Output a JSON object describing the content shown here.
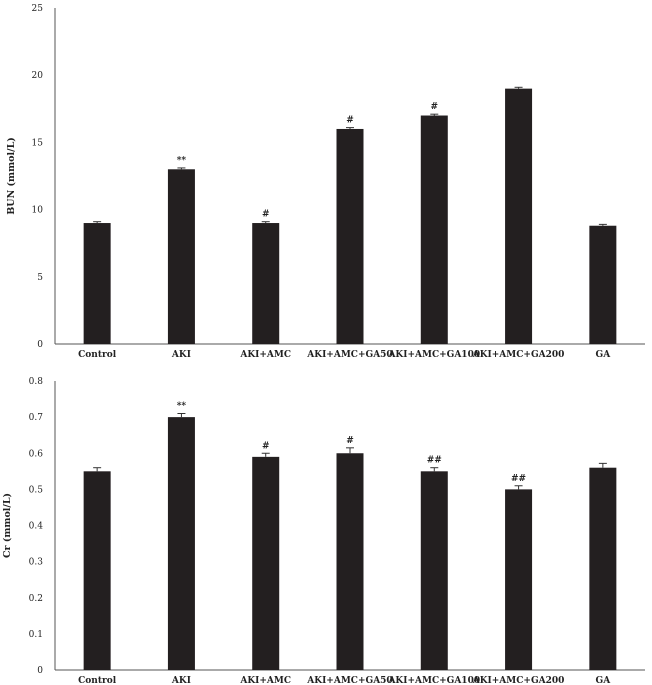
{
  "chart_data": [
    {
      "type": "bar",
      "ylabel": "BUN (mmol/L)",
      "xlabel": "",
      "title": "",
      "ylim": [
        0,
        25
      ],
      "yticks": [
        "0",
        "5",
        "10",
        "15",
        "20",
        "25"
      ],
      "grid": false,
      "categories": [
        "Control",
        "AKI",
        "AKI+AMC",
        "AKI+AMC+GA50",
        "AKI+AMC+GA100",
        "AKI+AMC+GA200",
        "GA"
      ],
      "values": [
        9.0,
        13.0,
        9.0,
        16.0,
        17.0,
        19.0,
        8.8
      ],
      "errors": [
        0.1,
        0.1,
        0.1,
        0.1,
        0.1,
        0.1,
        0.1
      ],
      "annotations": [
        "",
        "**",
        "#",
        "#",
        "#",
        "",
        ""
      ],
      "bar_color": "#231f20"
    },
    {
      "type": "bar",
      "ylabel": "Cr (mmol/L)",
      "xlabel": "",
      "title": "",
      "ylim": [
        0,
        0.8
      ],
      "yticks": [
        "0",
        "0.1",
        "0.2",
        "0.3",
        "0.4",
        "0.5",
        "0.6",
        "0.7",
        "0.8"
      ],
      "grid": false,
      "categories": [
        "Control",
        "AKI",
        "AKI+AMC",
        "AKI+AMC+GA50",
        "AKI+AMC+GA100",
        "AKI+AMC+GA200",
        "GA"
      ],
      "values": [
        0.55,
        0.7,
        0.59,
        0.6,
        0.55,
        0.5,
        0.56
      ],
      "errors": [
        0.01,
        0.01,
        0.01,
        0.015,
        0.01,
        0.01,
        0.012
      ],
      "annotations": [
        "",
        "**",
        "#",
        "#",
        "##",
        "##",
        ""
      ],
      "bar_color": "#231f20"
    }
  ]
}
